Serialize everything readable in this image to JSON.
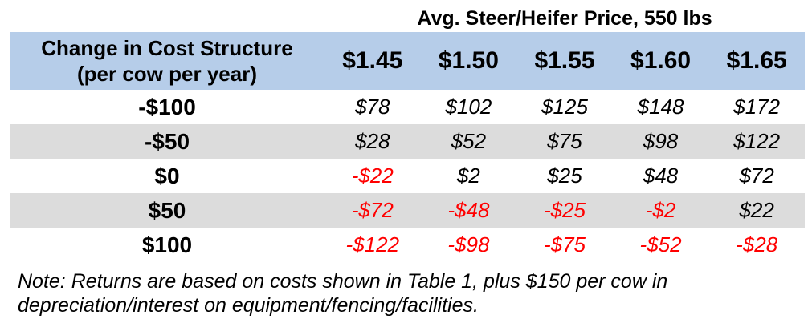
{
  "super_header": "Avg. Steer/Heifer Price, 550 lbs",
  "header": {
    "label_line1": "Change in Cost Structure",
    "label_line2": "(per cow per year)",
    "prices": [
      "$1.45",
      "$1.50",
      "$1.55",
      "$1.60",
      "$1.65"
    ]
  },
  "rows": [
    {
      "label": "-$100",
      "values": [
        "$78",
        "$102",
        "$125",
        "$148",
        "$172"
      ]
    },
    {
      "label": "-$50",
      "values": [
        "$28",
        "$52",
        "$75",
        "$98",
        "$122"
      ]
    },
    {
      "label": "$0",
      "values": [
        "-$22",
        "$2",
        "$25",
        "$48",
        "$72"
      ]
    },
    {
      "label": "$50",
      "values": [
        "-$72",
        "-$48",
        "-$25",
        "-$2",
        "$22"
      ]
    },
    {
      "label": "$100",
      "values": [
        "-$122",
        "-$98",
        "-$75",
        "-$52",
        "-$28"
      ]
    }
  ],
  "note_line1": "Note: Returns are based on costs shown in Table 1, plus $150 per cow in",
  "note_line2": "depreciation/interest on equipment/fencing/facilities.",
  "colors": {
    "header_bg": "#b6cde9",
    "shaded_row_bg": "#dcdcdc",
    "negative": "#ff0000"
  }
}
